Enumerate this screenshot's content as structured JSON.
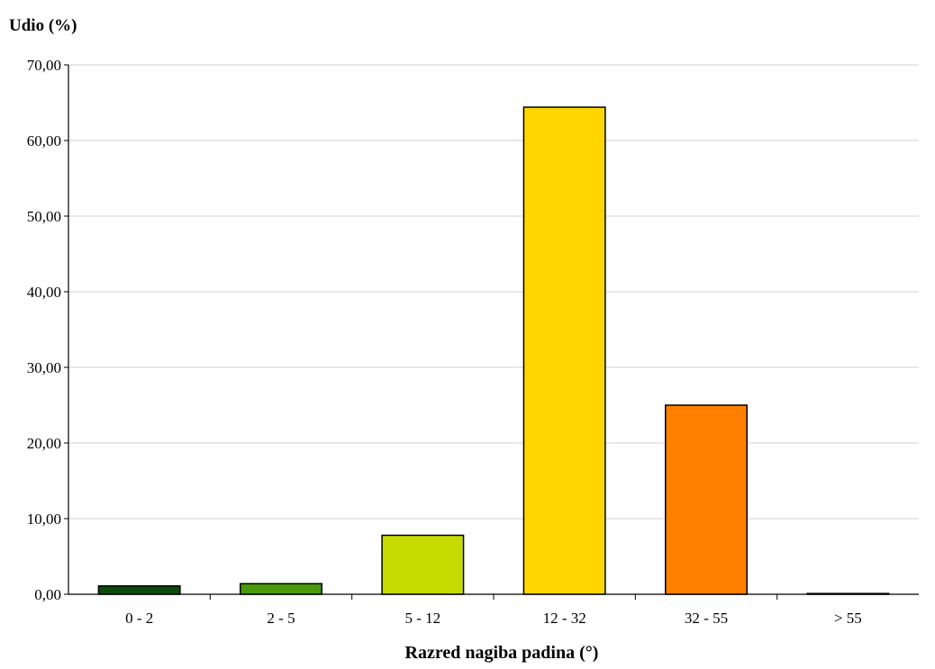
{
  "chart_data": {
    "type": "bar",
    "ylabel": "Udio (%)",
    "xlabel": "Razred nagiba padina (°)",
    "categories": [
      "0 - 2",
      "2 - 5",
      "5 - 12",
      "12 - 32",
      "32 - 55",
      "> 55"
    ],
    "values": [
      1.1,
      1.4,
      7.8,
      64.4,
      25.0,
      0.1
    ],
    "colors": [
      "#0a4d0a",
      "#4a9a0a",
      "#c6db00",
      "#ffd600",
      "#ff8000",
      "#1a1a1a"
    ],
    "ylim": [
      0,
      70
    ],
    "yticks": [
      "0,00",
      "10,00",
      "20,00",
      "30,00",
      "40,00",
      "50,00",
      "60,00",
      "70,00"
    ],
    "grid": true,
    "legend": "none"
  }
}
